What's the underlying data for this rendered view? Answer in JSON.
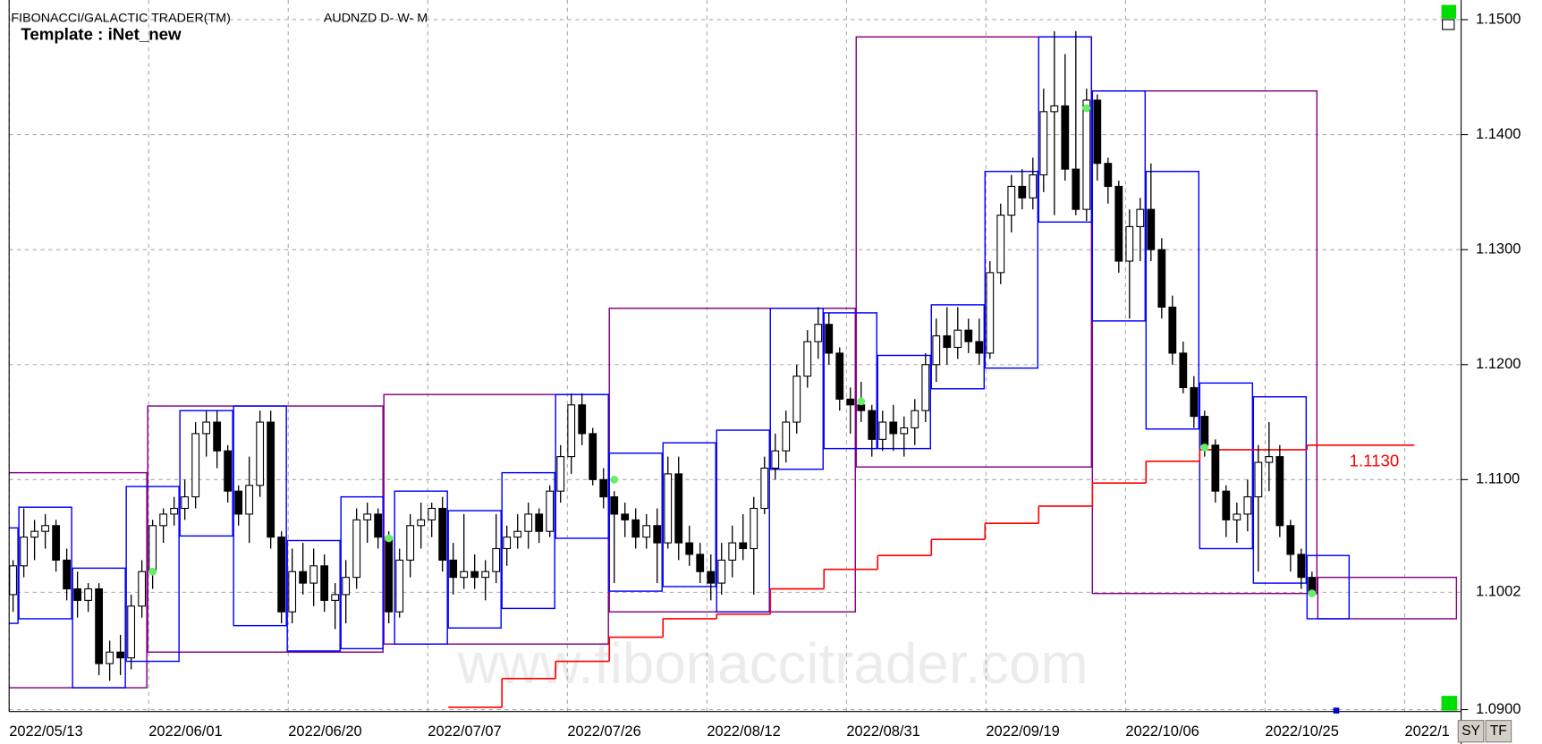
{
  "header": {
    "title": "FIBONACCI/GALACTIC TRADER(TM)",
    "symbol": "AUDNZD D- W- M",
    "template": "Template : iNet_new"
  },
  "watermark": "www.fibonaccitrader.com",
  "buttons": [
    "SY",
    "TF"
  ],
  "chart_data": {
    "type": "candlestick",
    "ylim": [
      1.09,
      1.15
    ],
    "yticks": [
      {
        "value": 1.15,
        "label": "1.1500"
      },
      {
        "value": 1.14,
        "label": "1.1400"
      },
      {
        "value": 1.13,
        "label": "1.1300"
      },
      {
        "value": 1.12,
        "label": "1.1200"
      },
      {
        "value": 1.11,
        "label": "1.1100"
      },
      {
        "value": 1.09,
        "label": "1.0900"
      }
    ],
    "last_price": 1.1002,
    "xticks": [
      {
        "value": 0,
        "label": "2022/05/13"
      },
      {
        "value": 13,
        "label": "2022/06/01"
      },
      {
        "value": 26,
        "label": "2022/06/20"
      },
      {
        "value": 39,
        "label": "2022/07/07"
      },
      {
        "value": 52,
        "label": "2022/07/26"
      },
      {
        "value": 65,
        "label": "2022/08/12"
      },
      {
        "value": 78,
        "label": "2022/08/31"
      },
      {
        "value": 91,
        "label": "2022/09/19"
      },
      {
        "value": 104,
        "label": "2022/10/06"
      },
      {
        "value": 117,
        "label": "2022/10/25"
      },
      {
        "value": 130,
        "label": "2022/1"
      }
    ],
    "grid": true,
    "bull_color": "#ffffff",
    "bear_color": "#000000",
    "candles": [
      [
        1.1,
        1.103,
        1.0985,
        1.1025
      ],
      [
        1.1025,
        1.1075,
        1.1015,
        1.105
      ],
      [
        1.105,
        1.1065,
        1.103,
        1.1055
      ],
      [
        1.1055,
        1.107,
        1.104,
        1.106
      ],
      [
        1.106,
        1.1065,
        1.102,
        1.103
      ],
      [
        1.103,
        1.104,
        1.0995,
        1.1005
      ],
      [
        1.1005,
        1.102,
        1.098,
        1.0995
      ],
      [
        1.0995,
        1.101,
        1.0985,
        1.1005
      ],
      [
        1.1005,
        1.101,
        1.093,
        1.094
      ],
      [
        1.094,
        1.096,
        1.0925,
        1.095
      ],
      [
        1.095,
        1.0965,
        1.093,
        1.0945
      ],
      [
        1.0945,
        1.1,
        1.0935,
        1.099
      ],
      [
        1.099,
        1.103,
        1.098,
        1.102
      ],
      [
        1.102,
        1.1065,
        1.1005,
        1.106
      ],
      [
        1.106,
        1.1075,
        1.1045,
        1.107
      ],
      [
        1.107,
        1.1085,
        1.106,
        1.1075
      ],
      [
        1.1075,
        1.11,
        1.1065,
        1.1085
      ],
      [
        1.1085,
        1.115,
        1.1075,
        1.114
      ],
      [
        1.114,
        1.116,
        1.112,
        1.115
      ],
      [
        1.115,
        1.116,
        1.111,
        1.1125
      ],
      [
        1.1125,
        1.113,
        1.108,
        1.109
      ],
      [
        1.109,
        1.1095,
        1.106,
        1.107
      ],
      [
        1.107,
        1.112,
        1.1045,
        1.1095
      ],
      [
        1.1095,
        1.116,
        1.1085,
        1.115
      ],
      [
        1.115,
        1.116,
        1.104,
        1.105
      ],
      [
        1.105,
        1.1055,
        1.0975,
        1.0985
      ],
      [
        1.0985,
        1.104,
        1.0975,
        1.102
      ],
      [
        1.102,
        1.1045,
        1.1,
        1.101
      ],
      [
        1.101,
        1.104,
        1.099,
        1.1025
      ],
      [
        1.1025,
        1.1035,
        1.0985,
        1.0995
      ],
      [
        1.0995,
        1.101,
        1.097,
        1.1
      ],
      [
        1.1,
        1.103,
        1.0975,
        1.1015
      ],
      [
        1.1015,
        1.1075,
        1.1005,
        1.1065
      ],
      [
        1.1065,
        1.108,
        1.1045,
        1.107
      ],
      [
        1.107,
        1.1075,
        1.104,
        1.105
      ],
      [
        1.105,
        1.1055,
        1.0975,
        1.0985
      ],
      [
        1.0985,
        1.104,
        1.098,
        1.103
      ],
      [
        1.103,
        1.107,
        1.1015,
        1.106
      ],
      [
        1.106,
        1.108,
        1.104,
        1.1065
      ],
      [
        1.1065,
        1.108,
        1.105,
        1.1075
      ],
      [
        1.1075,
        1.1085,
        1.102,
        1.103
      ],
      [
        1.103,
        1.1045,
        1.1,
        1.1015
      ],
      [
        1.1015,
        1.107,
        1.1005,
        1.102
      ],
      [
        1.102,
        1.1035,
        1.1005,
        1.1015
      ],
      [
        1.1015,
        1.103,
        1.0995,
        1.102
      ],
      [
        1.102,
        1.107,
        1.101,
        1.104
      ],
      [
        1.104,
        1.106,
        1.1025,
        1.105
      ],
      [
        1.105,
        1.107,
        1.104,
        1.1055
      ],
      [
        1.1055,
        1.108,
        1.104,
        1.107
      ],
      [
        1.107,
        1.1075,
        1.1045,
        1.1055
      ],
      [
        1.1055,
        1.1095,
        1.105,
        1.109
      ],
      [
        1.109,
        1.113,
        1.108,
        1.112
      ],
      [
        1.112,
        1.1175,
        1.1105,
        1.1165
      ],
      [
        1.1165,
        1.1175,
        1.113,
        1.114
      ],
      [
        1.114,
        1.1145,
        1.1095,
        1.11
      ],
      [
        1.11,
        1.111,
        1.1075,
        1.1085
      ],
      [
        1.1085,
        1.109,
        1.101,
        1.107
      ],
      [
        1.107,
        1.108,
        1.105,
        1.1065
      ],
      [
        1.1065,
        1.1075,
        1.104,
        1.105
      ],
      [
        1.105,
        1.107,
        1.104,
        1.106
      ],
      [
        1.106,
        1.1075,
        1.101,
        1.1045
      ],
      [
        1.1045,
        1.112,
        1.104,
        1.1105
      ],
      [
        1.1105,
        1.112,
        1.103,
        1.1045
      ],
      [
        1.1045,
        1.106,
        1.1025,
        1.1035
      ],
      [
        1.1035,
        1.1045,
        1.101,
        1.102
      ],
      [
        1.102,
        1.1035,
        1.0995,
        1.101
      ],
      [
        1.101,
        1.1045,
        1.1,
        1.103
      ],
      [
        1.103,
        1.106,
        1.1015,
        1.1045
      ],
      [
        1.1045,
        1.107,
        1.103,
        1.104
      ],
      [
        1.104,
        1.1085,
        1.1,
        1.1075
      ],
      [
        1.1075,
        1.112,
        1.107,
        1.111
      ],
      [
        1.111,
        1.114,
        1.11,
        1.1125
      ],
      [
        1.1125,
        1.116,
        1.1115,
        1.115
      ],
      [
        1.115,
        1.12,
        1.114,
        1.119
      ],
      [
        1.119,
        1.123,
        1.118,
        1.122
      ],
      [
        1.122,
        1.125,
        1.1205,
        1.1235
      ],
      [
        1.1235,
        1.1245,
        1.12,
        1.121
      ],
      [
        1.121,
        1.1215,
        1.116,
        1.117
      ],
      [
        1.117,
        1.118,
        1.114,
        1.1165
      ],
      [
        1.1165,
        1.1185,
        1.115,
        1.116
      ],
      [
        1.116,
        1.1165,
        1.112,
        1.1135
      ],
      [
        1.1135,
        1.116,
        1.1125,
        1.115
      ],
      [
        1.115,
        1.1165,
        1.1125,
        1.114
      ],
      [
        1.114,
        1.1155,
        1.112,
        1.1145
      ],
      [
        1.1145,
        1.117,
        1.113,
        1.116
      ],
      [
        1.116,
        1.121,
        1.115,
        1.12
      ],
      [
        1.12,
        1.124,
        1.1185,
        1.1225
      ],
      [
        1.1225,
        1.125,
        1.12,
        1.1215
      ],
      [
        1.1215,
        1.125,
        1.1205,
        1.123
      ],
      [
        1.123,
        1.124,
        1.121,
        1.122
      ],
      [
        1.122,
        1.124,
        1.12,
        1.121
      ],
      [
        1.121,
        1.129,
        1.1205,
        1.128
      ],
      [
        1.128,
        1.134,
        1.127,
        1.133
      ],
      [
        1.133,
        1.1365,
        1.1315,
        1.1355
      ],
      [
        1.1355,
        1.137,
        1.1335,
        1.1345
      ],
      [
        1.1345,
        1.138,
        1.1335,
        1.1365
      ],
      [
        1.1365,
        1.144,
        1.135,
        1.142
      ],
      [
        1.142,
        1.149,
        1.133,
        1.1425
      ],
      [
        1.1425,
        1.147,
        1.136,
        1.137
      ],
      [
        1.137,
        1.149,
        1.133,
        1.1335
      ],
      [
        1.1335,
        1.144,
        1.1325,
        1.143
      ],
      [
        1.143,
        1.1435,
        1.136,
        1.1375
      ],
      [
        1.1375,
        1.138,
        1.134,
        1.1355
      ],
      [
        1.1355,
        1.136,
        1.128,
        1.129
      ],
      [
        1.129,
        1.1335,
        1.124,
        1.132
      ],
      [
        1.132,
        1.1345,
        1.129,
        1.1335
      ],
      [
        1.1335,
        1.1375,
        1.129,
        1.13
      ],
      [
        1.13,
        1.131,
        1.124,
        1.125
      ],
      [
        1.125,
        1.126,
        1.12,
        1.121
      ],
      [
        1.121,
        1.122,
        1.1175,
        1.118
      ],
      [
        1.118,
        1.119,
        1.1145,
        1.1155
      ],
      [
        1.1155,
        1.116,
        1.112,
        1.113
      ],
      [
        1.113,
        1.1135,
        1.108,
        1.109
      ],
      [
        1.109,
        1.1095,
        1.105,
        1.1065
      ],
      [
        1.1065,
        1.108,
        1.1045,
        1.107
      ],
      [
        1.107,
        1.11,
        1.1055,
        1.1085
      ],
      [
        1.1085,
        1.113,
        1.102,
        1.1115
      ],
      [
        1.1115,
        1.115,
        1.109,
        1.112
      ],
      [
        1.112,
        1.113,
        1.105,
        1.106
      ],
      [
        1.106,
        1.1065,
        1.102,
        1.1035
      ],
      [
        1.1035,
        1.104,
        1.1005,
        1.1015
      ],
      [
        1.1015,
        1.102,
        1.0998,
        1.1002
      ]
    ],
    "weekly_boxes": {
      "color": "#0000ff",
      "from": [
        0,
        1,
        6,
        11,
        16,
        21,
        26,
        31,
        36,
        41,
        46,
        51,
        56,
        61,
        66,
        71,
        76,
        81,
        86,
        91,
        96,
        101,
        106,
        111,
        116,
        121
      ],
      "to": [
        0,
        5,
        10,
        15,
        20,
        25,
        30,
        34,
        40,
        45,
        50,
        55,
        60,
        65,
        70,
        75,
        80,
        85,
        90,
        95,
        100,
        105,
        110,
        115,
        120,
        124
      ],
      "high": [
        1.1058,
        1.1076,
        1.1023,
        1.1094,
        1.116,
        1.1164,
        1.1047,
        1.1085,
        1.109,
        1.1073,
        1.1106,
        1.1174,
        1.1123,
        1.1132,
        1.1143,
        1.1249,
        1.1245,
        1.1208,
        1.1252,
        1.1368,
        1.1485,
        1.1438,
        1.1368,
        1.1184,
        1.1172,
        1.1034
      ],
      "low": [
        1.0975,
        1.0979,
        1.0919,
        1.0942,
        1.1051,
        1.0973,
        1.0951,
        1.0953,
        1.0957,
        1.0971,
        1.0988,
        1.1049,
        1.1003,
        1.1007,
        1.0985,
        1.1109,
        1.1127,
        1.1127,
        1.1179,
        1.1197,
        1.1324,
        1.1238,
        1.1144,
        1.104,
        1.101,
        1.0979
      ]
    },
    "monthly_boxes": {
      "color": "#800080",
      "from": [
        0,
        13,
        35,
        56,
        79,
        101,
        122
      ],
      "to": [
        12,
        34,
        55,
        78,
        100,
        121,
        134
      ],
      "high": [
        1.1106,
        1.1164,
        1.1174,
        1.1249,
        1.1485,
        1.1438,
        1.1015
      ],
      "low": [
        1.0919,
        1.095,
        1.0957,
        1.0985,
        1.1111,
        1.1001,
        1.0979
      ]
    },
    "stop_line": {
      "color": "#ff0000",
      "x": [
        41,
        46,
        51,
        56,
        61,
        66,
        71,
        76,
        81,
        86,
        91,
        96,
        101,
        106,
        111,
        116,
        121
      ],
      "values": [
        1.0902,
        1.0927,
        1.0942,
        1.0963,
        1.0979,
        1.0983,
        1.1005,
        1.1022,
        1.1034,
        1.1048,
        1.1062,
        1.1077,
        1.1097,
        1.1116,
        1.1126,
        1.1126,
        1.113
      ],
      "value_label": "1.1130"
    },
    "signals": {
      "color": "#66ee66",
      "x": [
        13,
        35,
        56,
        79,
        100,
        111,
        121
      ],
      "values": [
        1.102,
        1.1049,
        1.11,
        1.1168,
        1.1423,
        1.1128,
        1.1001
      ]
    }
  }
}
